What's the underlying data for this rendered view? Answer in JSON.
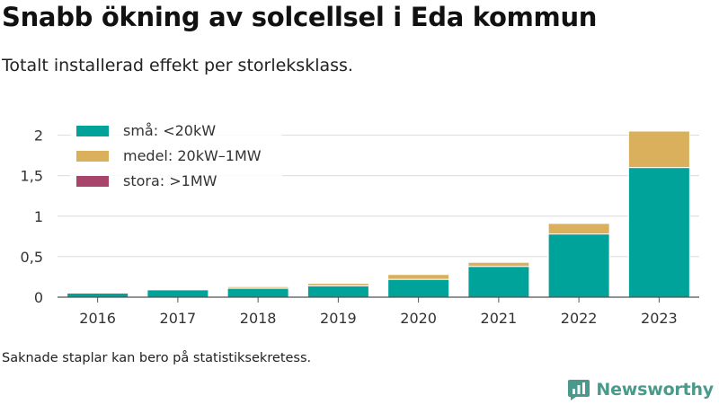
{
  "title": "Snabb ökning av solcellsel i Eda kommun",
  "subtitle": "Totalt installerad effekt per storleksklass.",
  "caption": "Saknade staplar kan bero på statistiksekretess.",
  "logo": {
    "text": "Newsworthy",
    "icon": "bar-chart-speech-bubble-icon",
    "color": "#4a9a8c"
  },
  "chart_data": {
    "type": "bar",
    "stacked": true,
    "categories": [
      "2016",
      "2017",
      "2018",
      "2019",
      "2020",
      "2021",
      "2022",
      "2023"
    ],
    "series": [
      {
        "name": "små: <20kW",
        "color": "#00a39a",
        "values": [
          0.05,
          0.09,
          0.11,
          0.14,
          0.22,
          0.38,
          0.78,
          1.6
        ]
      },
      {
        "name": "medel: 20kW–1MW",
        "color": "#dab05c",
        "values": [
          0.0,
          0.0,
          0.02,
          0.03,
          0.06,
          0.05,
          0.13,
          0.45
        ]
      },
      {
        "name": "stora: >1MW",
        "color": "#a8456b",
        "values": [
          0,
          0,
          0,
          0,
          0,
          0,
          0,
          0
        ]
      }
    ],
    "ylim": [
      0,
      2.05
    ],
    "yticks": [
      0,
      0.5,
      1,
      1.5,
      2
    ],
    "ytick_labels": [
      "0",
      "0,5",
      "1",
      "1,5",
      "2"
    ],
    "xlabel": "",
    "ylabel": "",
    "grid": "horizontal",
    "legend_position": "top-left"
  }
}
